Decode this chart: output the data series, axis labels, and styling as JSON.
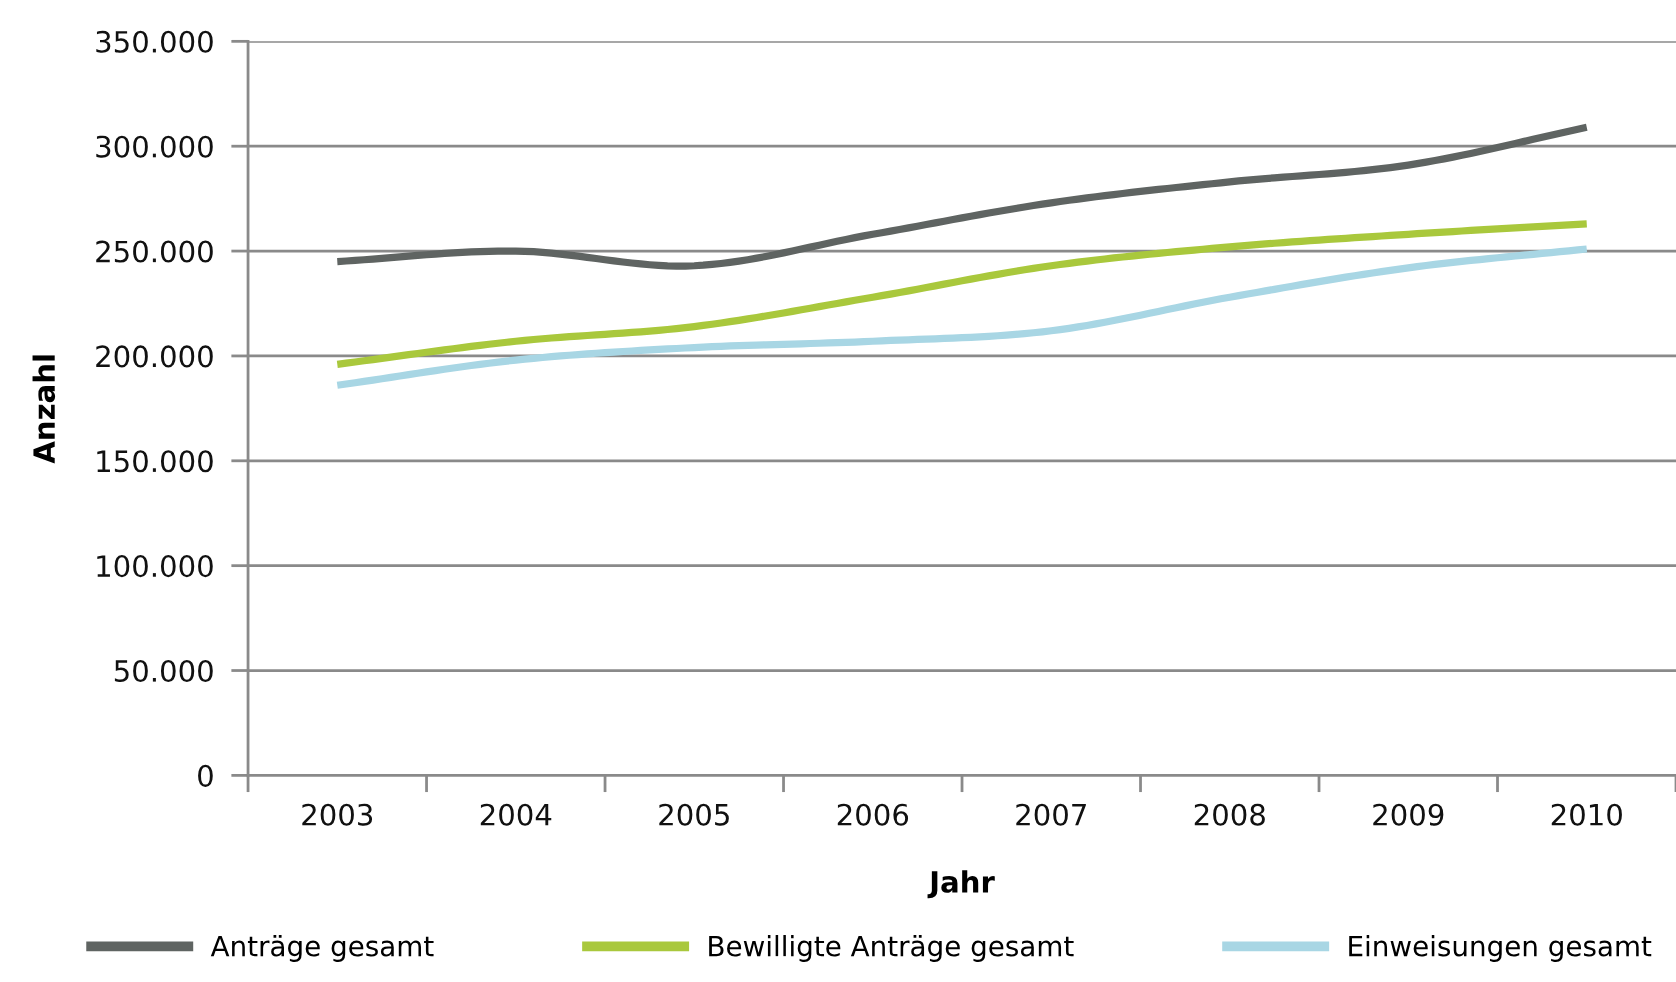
{
  "chart_data": {
    "type": "line",
    "xlabel": "Jahr",
    "ylabel": "Anzahl",
    "categories": [
      "2003",
      "2004",
      "2005",
      "2006",
      "2007",
      "2008",
      "2009",
      "2010"
    ],
    "series": [
      {
        "name": "Anträge gesamt",
        "color": "#5f6462",
        "values": [
          245000,
          250000,
          243000,
          258000,
          273000,
          283000,
          291000,
          309000
        ]
      },
      {
        "name": "Bewilligte Anträge gesamt",
        "color": "#a9c83c",
        "values": [
          196000,
          207000,
          214000,
          228000,
          243000,
          252000,
          258000,
          263000
        ]
      },
      {
        "name": "Einweisungen gesamt",
        "color": "#a8d6e4",
        "values": [
          186000,
          198000,
          204000,
          207000,
          212000,
          228000,
          242000,
          251000
        ]
      }
    ],
    "ylim": [
      0,
      350000
    ],
    "yticks": [
      0,
      {
        "value": 50000,
        "label": "50.000"
      },
      {
        "value": 100000,
        "label": "100.000"
      },
      {
        "value": 150000,
        "label": "150.000"
      },
      {
        "value": 200000,
        "label": "200.000"
      },
      {
        "value": 250000,
        "label": "250.000"
      },
      {
        "value": 300000,
        "label": "300.000"
      },
      {
        "value": 350000,
        "label": "350.000"
      }
    ],
    "grid": "y",
    "legend": "bottom",
    "line_style": "solid"
  }
}
